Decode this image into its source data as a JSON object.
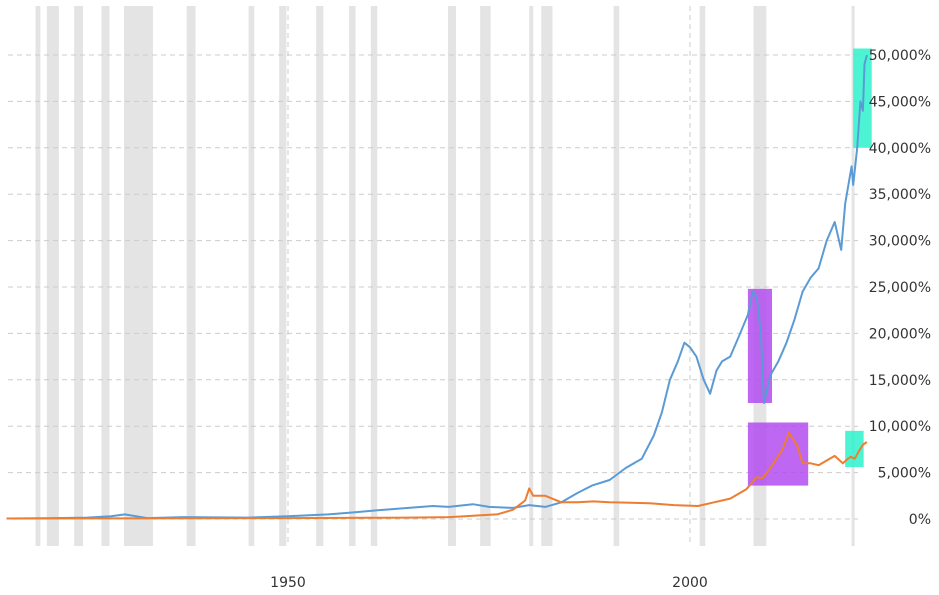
{
  "chart_data": {
    "type": "line",
    "title": "",
    "xlabel": "",
    "ylabel": "",
    "xlim": [
      1915,
      2022
    ],
    "ylim": [
      0,
      50000
    ],
    "x_ticks": [
      1950,
      2000
    ],
    "x_tick_labels": [
      "1950",
      "2000"
    ],
    "y_ticks": [
      0,
      5000,
      10000,
      15000,
      20000,
      25000,
      30000,
      35000,
      40000,
      45000,
      50000
    ],
    "y_tick_labels": [
      "0%",
      "5,000%",
      "10,000%",
      "15,000%",
      "20,000%",
      "25,000%",
      "30,000%",
      "35,000%",
      "40,000%",
      "45,000%",
      "50,000%"
    ],
    "grid": true,
    "y_axis_position": "right",
    "colors": {
      "series_1": "#5b9bd5",
      "series_2": "#ed7d31",
      "recession": "#e4e4e4",
      "highlight_peak": "#b14cf0",
      "highlight_recent": "#2ef2cc",
      "grid": "#cccccc"
    },
    "recessions": [
      [
        1918.6,
        1919.2
      ],
      [
        1920.0,
        1921.5
      ],
      [
        1923.4,
        1924.5
      ],
      [
        1926.8,
        1927.8
      ],
      [
        1929.6,
        1933.2
      ],
      [
        1937.4,
        1938.5
      ],
      [
        1945.1,
        1945.8
      ],
      [
        1948.9,
        1949.8
      ],
      [
        1953.5,
        1954.4
      ],
      [
        1957.6,
        1958.4
      ],
      [
        1960.3,
        1961.1
      ],
      [
        1969.9,
        1970.9
      ],
      [
        1973.9,
        1975.2
      ],
      [
        1980.0,
        1980.5
      ],
      [
        1981.5,
        1982.9
      ],
      [
        1990.5,
        1991.2
      ],
      [
        2001.2,
        2001.9
      ],
      [
        2007.9,
        2009.5
      ],
      [
        2020.1,
        2020.4
      ]
    ],
    "series": [
      {
        "x": [
          1915,
          1920,
          1925,
          1928,
          1929.7,
          1932.5,
          1937,
          1945,
          1950,
          1955,
          1958,
          1962,
          1965,
          1968,
          1970,
          1973,
          1975,
          1978,
          1980,
          1982,
          1984,
          1986,
          1987.8,
          1990,
          1992,
          1994,
          1995.5,
          1996.5,
          1997.5,
          1998.5,
          1999.3,
          2000,
          2000.8,
          2001.7,
          2002.5,
          2003.3,
          2004,
          2005,
          2006,
          2007.2,
          2007.8,
          2008.3,
          2008.8,
          2009.2,
          2010,
          2011,
          2012,
          2013,
          2014,
          2015,
          2016,
          2017,
          2018,
          2018.8,
          2019.3,
          2020.1,
          2020.3,
          2020.8,
          2021.2,
          2021.5,
          2021.7,
          2022
        ],
        "y": [
          50,
          80,
          150,
          300,
          500,
          100,
          200,
          150,
          300,
          500,
          700,
          1000,
          1200,
          1400,
          1300,
          1600,
          1300,
          1200,
          1500,
          1300,
          1800,
          2800,
          3600,
          4200,
          5500,
          6500,
          9000,
          11500,
          15000,
          17000,
          19000,
          18500,
          17500,
          15000,
          13500,
          16000,
          17000,
          17500,
          19500,
          22000,
          24500,
          24000,
          20000,
          12500,
          15500,
          17000,
          19000,
          21500,
          24500,
          26000,
          27000,
          30000,
          32000,
          29000,
          34000,
          38000,
          36000,
          40000,
          45000,
          44000,
          49000,
          50000
        ]
      },
      {
        "x": [
          1915,
          1925,
          1940,
          1950,
          1960,
          1965,
          1970,
          1972,
          1974,
          1976,
          1978,
          1979.5,
          1980,
          1980.5,
          1982,
          1984,
          1986,
          1988,
          1990,
          1995,
          1998,
          2001,
          2003,
          2005,
          2007,
          2008.3,
          2009,
          2010,
          2011.5,
          2012.3,
          2013.3,
          2014,
          2015,
          2016,
          2017,
          2018,
          2019,
          2019.5,
          2020,
          2020.5,
          2021,
          2021.5,
          2022
        ],
        "y": [
          50,
          60,
          80,
          100,
          130,
          150,
          200,
          300,
          400,
          500,
          1000,
          2000,
          3300,
          2500,
          2500,
          1800,
          1800,
          1900,
          1800,
          1700,
          1500,
          1400,
          1800,
          2200,
          3200,
          4500,
          4400,
          5500,
          7500,
          9300,
          8000,
          6000,
          6000,
          5800,
          6300,
          6800,
          6000,
          6400,
          6700,
          6500,
          7300,
          8000,
          8300
        ]
      }
    ],
    "highlights": [
      {
        "series": 0,
        "x": [
          2007.2,
          2010.2
        ],
        "y": [
          12500,
          24800
        ],
        "color": "highlight_peak"
      },
      {
        "series": 0,
        "x": [
          2020.3,
          2022.6
        ],
        "y": [
          40000,
          50700
        ],
        "color": "highlight_recent"
      },
      {
        "series": 1,
        "x": [
          2007.2,
          2014.7
        ],
        "y": [
          3600,
          10400
        ],
        "color": "highlight_peak"
      },
      {
        "series": 1,
        "x": [
          2019.3,
          2021.6
        ],
        "y": [
          5600,
          9500
        ],
        "color": "highlight_recent"
      }
    ]
  }
}
